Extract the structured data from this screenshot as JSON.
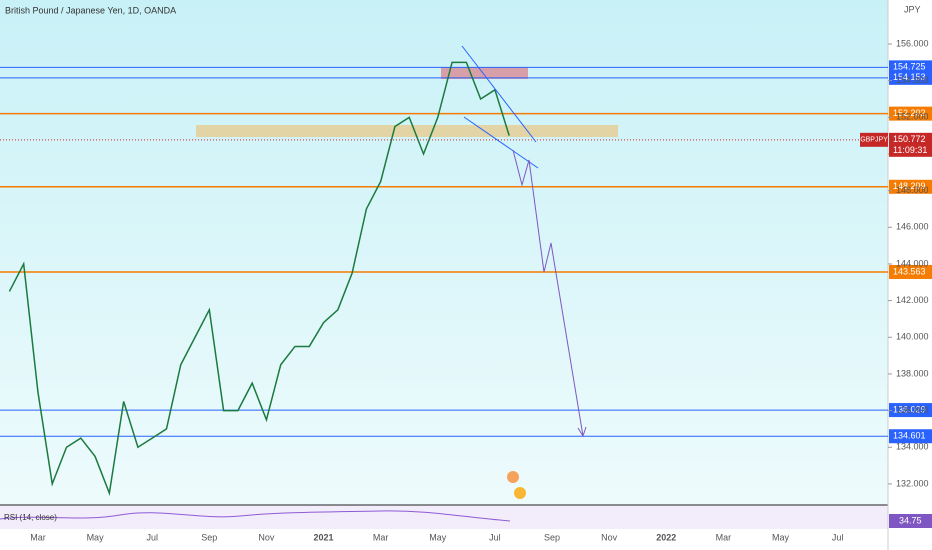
{
  "title": "British Pound / Japanese Yen, 1D, OANDA",
  "currency": "JPY",
  "chart_data": {
    "type": "line",
    "color": "#1b7a3e",
    "categories": [
      null,
      null,
      "Mar",
      null,
      null,
      null,
      "May",
      null,
      null,
      null,
      "Jul",
      null,
      null,
      null,
      "Sep",
      null,
      null,
      null,
      "Nov",
      null,
      null,
      null,
      "2021",
      null,
      null,
      null,
      "Mar",
      null,
      null,
      null,
      "May",
      null,
      null,
      null,
      "Jul",
      null,
      null,
      null,
      "Sep",
      null,
      null,
      null,
      "Nov",
      null,
      null,
      null,
      "2022",
      null,
      null,
      null,
      "Mar",
      null,
      null,
      null,
      "May",
      null,
      null,
      null,
      "Jul",
      null,
      null,
      null
    ],
    "values": [
      142.5,
      144,
      137,
      132,
      134,
      134.5,
      133.5,
      131.5,
      136.5,
      134,
      134.5,
      135,
      138.5,
      140,
      141.5,
      136,
      136,
      137.5,
      135.5,
      138.5,
      139.5,
      139.5,
      140.8,
      141.5,
      143.5,
      147,
      148.5,
      151.5,
      152,
      150,
      152,
      155,
      155,
      153,
      153.5,
      151,
      null,
      null,
      null,
      null,
      null,
      null,
      null,
      null,
      null,
      null,
      null,
      null,
      null,
      null,
      null,
      null,
      null,
      null,
      null,
      null,
      null,
      null,
      null,
      null,
      null,
      null
    ],
    "ylim": [
      130.85,
      158.4
    ],
    "yticks": [
      {
        "value": 132,
        "label": "132.000"
      },
      {
        "value": 134,
        "label": "134.000"
      },
      {
        "value": 136,
        "label": "136.000"
      },
      {
        "value": 138,
        "label": "138.000"
      },
      {
        "value": 140,
        "label": "140.000"
      },
      {
        "value": 142,
        "label": "142.000"
      },
      {
        "value": 144,
        "label": "144.000"
      },
      {
        "value": 146,
        "label": "146.000"
      },
      {
        "value": 148,
        "label": "148.000"
      },
      {
        "value": 150,
        "label": "150.000"
      },
      {
        "value": 152,
        "label": "152.000"
      },
      {
        "value": 154,
        "label": "154.000"
      },
      {
        "value": 156,
        "label": "156.000"
      }
    ],
    "levels": [
      {
        "value": 154.725,
        "color": "#2962ff"
      },
      {
        "value": 154.153,
        "color": "#2962ff"
      },
      {
        "value": 152.202,
        "color": "#f57c00"
      },
      {
        "value": 148.209,
        "color": "#f57c00"
      },
      {
        "value": 143.563,
        "color": "#f57c00"
      },
      {
        "value": 136.029,
        "color": "#2962ff"
      },
      {
        "value": 134.601,
        "color": "#2962ff"
      }
    ],
    "current": {
      "symbol": "GBPJPY",
      "value": 150.772,
      "countdown": "11:09:31",
      "color": "#c62828"
    },
    "rsi": {
      "label": "RSI (14, close)",
      "value": 34.75
    }
  }
}
